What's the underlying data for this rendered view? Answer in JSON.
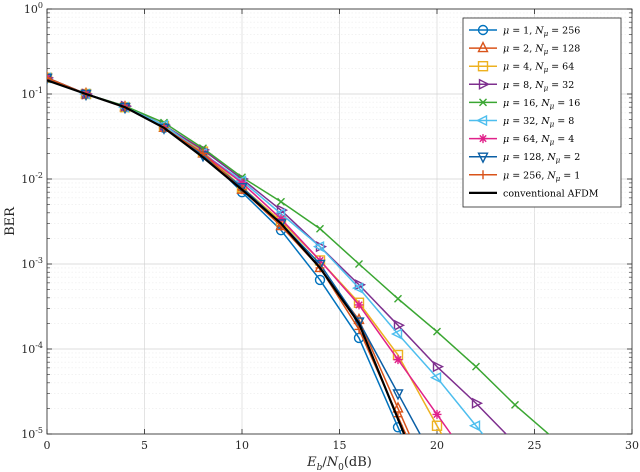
{
  "chart_data": {
    "type": "line",
    "xlabel": "E_b/N_0(dB)",
    "ylabel": "BER",
    "xlim": [
      0,
      30
    ],
    "ylim_log10": [
      -5,
      0
    ],
    "y_scale": "log",
    "grid": true,
    "legend_position": "top-right",
    "x_ticks": [
      0,
      5,
      10,
      15,
      20,
      25,
      30
    ],
    "x_tick_labels": [
      "0",
      "5",
      "10",
      "15",
      "20",
      "25",
      "30"
    ],
    "y_ticks": [
      1,
      0.1,
      0.01,
      0.001,
      0.0001,
      1e-05
    ],
    "y_tick_labels": [
      {
        "base": "10",
        "exp": "0"
      },
      {
        "base": "10",
        "exp": "-1"
      },
      {
        "base": "10",
        "exp": "-2"
      },
      {
        "base": "10",
        "exp": "-3"
      },
      {
        "base": "10",
        "exp": "-4"
      },
      {
        "base": "10",
        "exp": "-5"
      }
    ],
    "x": [
      0,
      2,
      4,
      6,
      8,
      10,
      12,
      14,
      16,
      18,
      20,
      22,
      24,
      26
    ],
    "series": [
      {
        "name": "μ = 1, N_μ = 256",
        "mu": "1",
        "nmu": "256",
        "color": "#0072BD",
        "marker": "circle",
        "values": [
          0.155,
          0.1,
          0.07,
          0.04,
          0.02,
          0.007,
          0.0025,
          0.00065,
          0.000135,
          1.2e-05,
          null,
          null,
          null,
          null
        ]
      },
      {
        "name": "μ = 2, N_μ = 128",
        "mu": "2",
        "nmu": "128",
        "color": "#D95319",
        "marker": "triangle-up",
        "values": [
          0.155,
          0.1,
          0.07,
          0.04,
          0.02,
          0.0075,
          0.0028,
          0.0009,
          0.00022,
          2e-05,
          null,
          null,
          null,
          null
        ]
      },
      {
        "name": "μ = 4, N_μ = 64",
        "mu": "4",
        "nmu": "64",
        "color": "#EDB120",
        "marker": "square",
        "values": [
          0.155,
          0.1,
          0.07,
          0.042,
          0.021,
          0.008,
          0.0032,
          0.0011,
          0.00035,
          8.5e-05,
          1.25e-05,
          null,
          null,
          null
        ]
      },
      {
        "name": "μ = 8, N_μ = 32",
        "mu": "8",
        "nmu": "32",
        "color": "#7E2F8E",
        "marker": "triangle-right",
        "values": [
          0.155,
          0.1,
          0.072,
          0.043,
          0.022,
          0.01,
          0.0043,
          0.0016,
          0.00057,
          0.00019,
          6.2e-05,
          2.3e-05,
          7.8e-06,
          null
        ]
      },
      {
        "name": "μ = 16, N_μ = 16",
        "mu": "16",
        "nmu": "16",
        "color": "#3AA632",
        "marker": "x",
        "values": [
          0.155,
          0.1,
          0.072,
          0.046,
          0.023,
          0.0105,
          0.0054,
          0.0026,
          0.001,
          0.00039,
          0.00016,
          6.2e-05,
          2.2e-05,
          8.8e-06
        ]
      },
      {
        "name": "μ = 32, N_μ = 8",
        "mu": "32",
        "nmu": "8",
        "color": "#4DBEEE",
        "marker": "triangle-left",
        "values": [
          0.155,
          0.1,
          0.07,
          0.043,
          0.02,
          0.0095,
          0.0039,
          0.0016,
          0.00052,
          0.00015,
          4.6e-05,
          1.25e-05,
          null,
          null
        ]
      },
      {
        "name": "μ = 64, N_μ = 4",
        "mu": "64",
        "nmu": "4",
        "color": "#E0218A",
        "marker": "asterisk",
        "values": [
          0.155,
          0.1,
          0.07,
          0.04,
          0.02,
          0.009,
          0.0034,
          0.0011,
          0.00033,
          7.5e-05,
          1.7e-05,
          null,
          null,
          null
        ]
      },
      {
        "name": "μ = 128, N_μ = 2",
        "mu": "128",
        "nmu": "2",
        "color": "#0B5FA5",
        "marker": "triangle-down",
        "values": [
          0.155,
          0.1,
          0.07,
          0.04,
          0.019,
          0.008,
          0.003,
          0.001,
          0.00021,
          3e-05,
          null,
          null,
          null,
          null
        ]
      },
      {
        "name": "μ = 256, N_μ = 1",
        "mu": "256",
        "nmu": "1",
        "color": "#D95319",
        "marker": "plus",
        "values": [
          0.155,
          0.1,
          0.07,
          0.04,
          0.02,
          0.0075,
          0.0028,
          0.0009,
          0.00017,
          1.6e-05,
          null,
          null,
          null,
          null
        ]
      },
      {
        "name": "conventional AFDM",
        "mu": "",
        "nmu": "",
        "color": "#000000",
        "marker": "none",
        "values": [
          0.145,
          0.1,
          0.07,
          0.04,
          0.018,
          0.0075,
          0.003,
          0.0009,
          0.0002,
          1.5e-05,
          null,
          null,
          null,
          null
        ]
      }
    ]
  }
}
